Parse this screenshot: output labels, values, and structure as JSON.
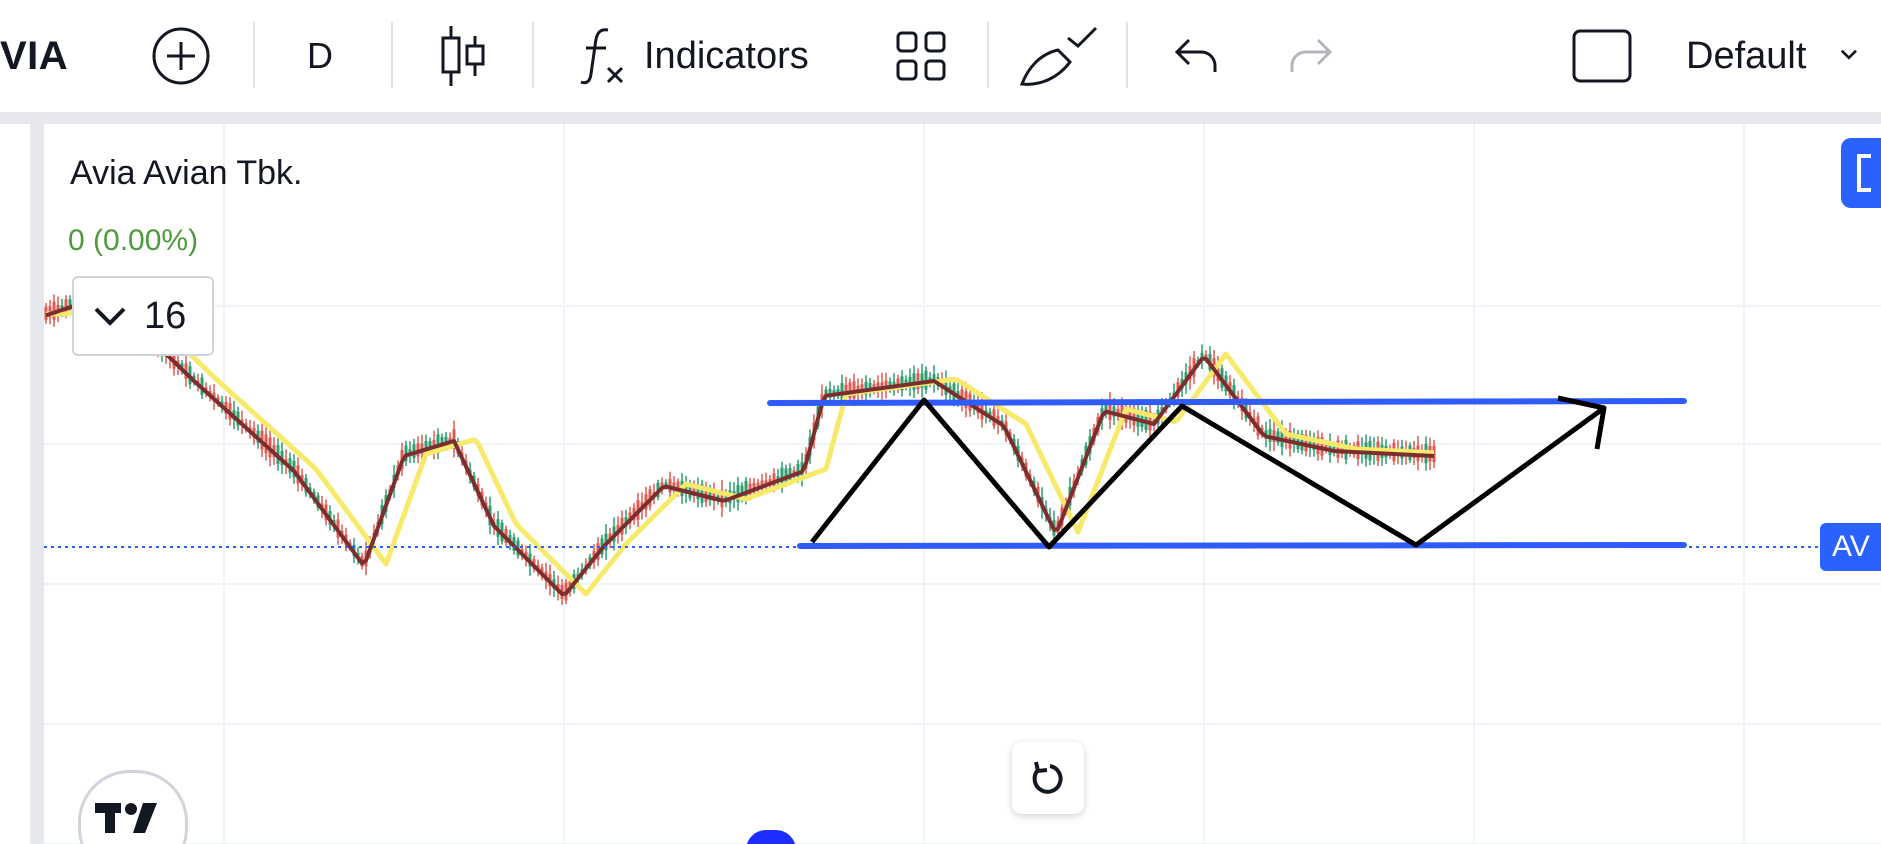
{
  "toolbar": {
    "symbol": "VIA",
    "timeframe": "D",
    "indicators_label": "Indicators",
    "layout_label": "Default"
  },
  "legend": {
    "title": "Avia Avian Tbk.",
    "change": "0 (0.00%)",
    "collapsed_count": "16"
  },
  "price_badge": "AV",
  "colors": {
    "up": "#26a69a",
    "down": "#ef5350",
    "ma_fast": "#7b2e2e",
    "ma_slow": "#f7e96a",
    "channel": "#2f5bff",
    "drawing": "#000000",
    "price_line": "#2962ff"
  }
}
